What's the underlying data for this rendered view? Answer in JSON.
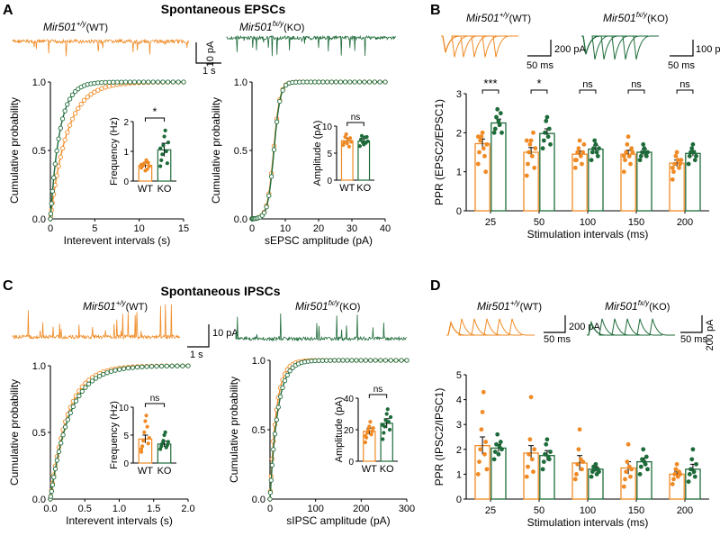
{
  "colors": {
    "wt": "#f08a24",
    "ko": "#1e6b3a",
    "sig": "#e02020",
    "axis": "#000000"
  },
  "panels": {
    "A": {
      "letter": "A",
      "title": "Spontaneous EPSCs",
      "wt_label": "Mir501",
      "wt_sup": "+/y",
      "wt_tag": "(WT)",
      "ko_label": "Mir501",
      "ko_sup": "fx/y",
      "ko_tag": "(KO)",
      "scale_y": "10 pA",
      "scale_x": "1 s"
    },
    "B": {
      "letter": "B",
      "wt_label": "Mir501",
      "wt_sup": "+/y",
      "wt_tag": "(WT)",
      "ko_label": "Mir501",
      "ko_sup": "fx/y",
      "ko_tag": "(KO)",
      "wt_scale_y": "200 pA",
      "wt_scale_x": "50 ms",
      "ko_scale_y": "100 pA",
      "ko_scale_x": "50 ms"
    },
    "C": {
      "letter": "C",
      "title": "Spontaneous IPSCs",
      "wt_label": "Mir501",
      "wt_sup": "+/y",
      "wt_tag": "(WT)",
      "ko_label": "Mir501",
      "ko_sup": "fx/y",
      "ko_tag": "(KO)",
      "scale_y": "10 pA",
      "scale_x": "1 s"
    },
    "D": {
      "letter": "D",
      "wt_label": "Mir501",
      "wt_sup": "+/y",
      "wt_tag": "(WT)",
      "ko_label": "Mir501",
      "ko_sup": "fx/y",
      "ko_tag": "(KO)",
      "wt_scale_y": "200 pA",
      "wt_scale_x": "50 ms",
      "ko_scale_y": "200 pA",
      "ko_scale_x": "50 ms"
    }
  },
  "chart_data": [
    {
      "id": "A_left",
      "type": "line",
      "ylabel": "Cumulative probability",
      "xlabel": "Interevent intervals (s)",
      "xlim": [
        0,
        15
      ],
      "xticks": [
        0,
        5,
        10,
        15
      ],
      "ylim": [
        0,
        1
      ],
      "yticks": [
        0.0,
        0.5,
        1.0
      ],
      "series": [
        {
          "name": "WT",
          "scale": 1.9
        },
        {
          "name": "KO",
          "scale": 1.05
        }
      ],
      "inset": {
        "type": "bar",
        "ylabel": "Frequency (Hz)",
        "categories": [
          "WT",
          "KO"
        ],
        "ylim": [
          0,
          2
        ],
        "yticks": [
          0,
          1,
          2
        ],
        "values": [
          0.53,
          1.05
        ],
        "errors": [
          0.08,
          0.22
        ],
        "sig": "*",
        "points": [
          [
            0.45,
            0.5,
            0.55,
            0.6,
            0.35,
            0.7,
            0.4,
            0.62,
            0.5,
            0.55
          ],
          [
            0.5,
            0.7,
            0.9,
            1.2,
            1.5,
            1.7,
            1.0,
            0.6,
            1.3,
            1.1
          ]
        ]
      }
    },
    {
      "id": "A_right",
      "type": "line",
      "ylabel": "Cumulative probability",
      "xlabel": "sEPSC amplitude (pA)",
      "xlim": [
        0,
        40
      ],
      "xticks": [
        0,
        10,
        20,
        30,
        40
      ],
      "ylim": [
        0,
        1
      ],
      "yticks": [
        0.0,
        0.5,
        1.0
      ],
      "series": [
        {
          "name": "WT",
          "mu": 6.5,
          "sd": 1.6
        },
        {
          "name": "KO",
          "mu": 6.6,
          "sd": 1.6
        }
      ],
      "inset": {
        "type": "bar",
        "ylabel": "Amplitude (pA)",
        "categories": [
          "WT",
          "KO"
        ],
        "ylim": [
          0,
          10
        ],
        "yticks": [
          0,
          5,
          10
        ],
        "values": [
          7.3,
          7.2
        ],
        "errors": [
          0.5,
          0.5
        ],
        "sig": "ns",
        "points": [
          [
            6.5,
            7.0,
            8.0,
            8.5,
            6.8,
            7.5,
            6.2,
            7.8,
            7.1
          ],
          [
            6.3,
            7.5,
            8.2,
            7.0,
            6.6,
            7.9,
            6.9,
            8.0,
            7.2
          ]
        ]
      }
    },
    {
      "id": "B",
      "type": "bar",
      "ylabel": "PPR (EPSC2/EPSC1)",
      "xlabel": "Stimulation intervals (ms)",
      "categories": [
        "25",
        "50",
        "100",
        "150",
        "200"
      ],
      "ylim": [
        0,
        3
      ],
      "yticks": [
        0,
        1,
        2,
        3
      ],
      "series": [
        {
          "name": "WT",
          "values": [
            1.72,
            1.5,
            1.45,
            1.45,
            1.22
          ],
          "errors": [
            0.12,
            0.12,
            0.08,
            0.1,
            0.08
          ]
        },
        {
          "name": "KO",
          "values": [
            2.25,
            1.98,
            1.58,
            1.5,
            1.47
          ],
          "errors": [
            0.1,
            0.12,
            0.1,
            0.08,
            0.07
          ]
        }
      ],
      "points": {
        "WT": [
          [
            1.2,
            1.5,
            1.8,
            1.9,
            2.0,
            1.6,
            1.4,
            1.0,
            1.7,
            1.9
          ],
          [
            0.9,
            1.2,
            1.5,
            1.7,
            1.8,
            1.4,
            2.0,
            1.1,
            1.6,
            1.8
          ],
          [
            1.1,
            1.3,
            1.5,
            1.6,
            1.8,
            1.4,
            1.2,
            1.5,
            1.7,
            1.3
          ],
          [
            1.0,
            1.3,
            1.5,
            1.7,
            1.9,
            1.4,
            1.2,
            1.6,
            1.5,
            1.4
          ],
          [
            0.8,
            1.0,
            1.2,
            1.4,
            1.5,
            1.3,
            1.1,
            1.2,
            1.3,
            1.1
          ]
        ],
        "KO": [
          [
            2.0,
            2.1,
            2.4,
            2.6,
            2.3,
            2.2,
            2.5,
            2.0
          ],
          [
            1.6,
            1.8,
            2.0,
            2.3,
            2.4,
            1.9,
            2.1,
            1.7
          ],
          [
            1.3,
            1.5,
            1.6,
            1.8,
            1.7,
            1.5,
            1.4,
            1.6
          ],
          [
            1.3,
            1.4,
            1.5,
            1.7,
            1.6,
            1.5,
            1.4,
            1.5
          ],
          [
            1.2,
            1.4,
            1.5,
            1.6,
            1.7,
            1.5,
            1.3,
            1.4
          ]
        ]
      },
      "sig": [
        "***",
        "*",
        "ns",
        "ns",
        "ns"
      ]
    },
    {
      "id": "C_left",
      "type": "line",
      "ylabel": "Cumulative probability",
      "xlabel": "Interevent intervals (s)",
      "xlim": [
        0,
        2.0
      ],
      "xticks": [
        0.0,
        0.5,
        1.0,
        1.5,
        2.0
      ],
      "ylim": [
        0,
        1
      ],
      "yticks": [
        0.0,
        0.5,
        1.0
      ],
      "series": [
        {
          "name": "WT",
          "scale": 0.25
        },
        {
          "name": "KO",
          "scale": 0.28
        }
      ],
      "inset": {
        "type": "bar",
        "ylabel": "Frequency (Hz)",
        "categories": [
          "WT",
          "KO"
        ],
        "ylim": [
          0,
          10
        ],
        "yticks": [
          0,
          5,
          10
        ],
        "values": [
          4.3,
          3.4
        ],
        "errors": [
          0.7,
          0.5
        ],
        "sig": "ns",
        "points": [
          [
            2.5,
            3.0,
            4.0,
            5.5,
            7.5,
            8.5,
            6.5,
            3.5,
            4.5,
            2.0
          ],
          [
            2.5,
            3.0,
            3.5,
            4.0,
            5.0,
            5.5,
            2.8,
            3.2,
            3.8
          ]
        ]
      }
    },
    {
      "id": "C_right",
      "type": "line",
      "ylabel": "Cumulative probability",
      "xlabel": "sIPSC amplitude (pA)",
      "xlim": [
        0,
        300
      ],
      "xticks": [
        0,
        100,
        200,
        300
      ],
      "ylim": [
        0,
        1
      ],
      "yticks": [
        0.0,
        0.5,
        1.0
      ],
      "series": [
        {
          "name": "WT",
          "scale": 14
        },
        {
          "name": "KO",
          "scale": 17
        }
      ],
      "inset": {
        "type": "bar",
        "ylabel": "Amplitude (pA)",
        "categories": [
          "WT",
          "KO"
        ],
        "ylim": [
          0,
          40
        ],
        "yticks": [
          0,
          20,
          40
        ],
        "values": [
          19,
          24
        ],
        "errors": [
          2,
          3
        ],
        "sig": "ns",
        "points": [
          [
            12,
            15,
            18,
            20,
            22,
            25,
            17,
            19,
            21,
            16
          ],
          [
            14,
            18,
            22,
            26,
            30,
            33,
            25,
            20,
            28,
            23
          ]
        ]
      }
    },
    {
      "id": "D",
      "type": "bar",
      "ylabel": "PPR (IPSC2/IPSC1)",
      "xlabel": "Stimulation intervals (ms)",
      "categories": [
        "25",
        "50",
        "100",
        "150",
        "200"
      ],
      "ylim": [
        0,
        5
      ],
      "yticks": [
        0,
        1,
        2,
        3,
        4,
        5
      ],
      "series": [
        {
          "name": "WT",
          "values": [
            2.15,
            1.85,
            1.45,
            1.25,
            1.0
          ],
          "errors": [
            0.35,
            0.3,
            0.3,
            0.25,
            0.12
          ]
        },
        {
          "name": "KO",
          "values": [
            2.05,
            1.75,
            1.2,
            1.5,
            1.2
          ],
          "errors": [
            0.15,
            0.2,
            0.1,
            0.15,
            0.2
          ]
        }
      ],
      "points": {
        "WT": [
          [
            1.0,
            1.5,
            2.0,
            2.8,
            3.5,
            4.3,
            1.8,
            2.3,
            1.2
          ],
          [
            0.9,
            1.3,
            1.8,
            2.4,
            4.1,
            1.6,
            1.1,
            2.0
          ],
          [
            0.8,
            1.0,
            1.4,
            2.0,
            2.8,
            1.6,
            1.2,
            1.5
          ],
          [
            0.5,
            0.8,
            1.1,
            1.5,
            2.2,
            1.3,
            0.9,
            1.2
          ],
          [
            0.6,
            0.8,
            1.0,
            1.2,
            1.4,
            0.9,
            1.1,
            1.0
          ]
        ],
        "KO": [
          [
            1.6,
            1.9,
            2.2,
            2.6,
            1.8,
            2.1,
            2.3,
            2.0
          ],
          [
            1.2,
            1.5,
            1.8,
            2.2,
            2.4,
            1.7,
            1.6,
            1.9
          ],
          [
            0.9,
            1.1,
            1.3,
            1.2,
            1.4,
            1.0,
            1.2,
            1.1
          ],
          [
            1.0,
            1.3,
            1.6,
            2.0,
            1.5,
            1.4,
            1.7,
            1.2
          ],
          [
            0.7,
            1.0,
            1.2,
            1.6,
            2.0,
            1.1,
            0.9,
            1.4
          ]
        ]
      },
      "sig": [
        "",
        "",
        "",
        "",
        ""
      ]
    }
  ]
}
